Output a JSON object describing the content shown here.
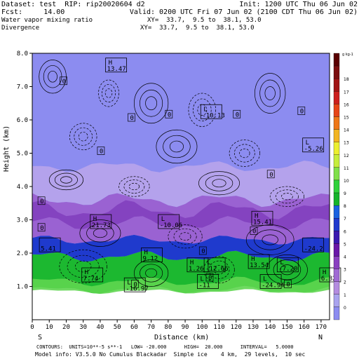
{
  "header": {
    "line1_left": "Dataset: test  RIP: rip20020604 d2",
    "line1_right": "Init: 1200 UTC Thu 06 Jun 02",
    "line2_left": "Fcst:     14.00",
    "line2_right": "Valid: 0200 UTC Fri 07 Jun 02 (2100 CDT Thu 06 Jun 02)",
    "line3_left": "Water vapor mixing ratio",
    "line3_right": "XY=  33.7,  9.5 to  38.1, 53.0",
    "line4_left": "Divergence",
    "line4_right": "XY=  33.7,  9.5 to  38.1, 53.0"
  },
  "footer": {
    "line1": "CONTOURS:  UNITS=10**-5 s**-1   LOW= -20.000      HIGH=  20.000      INTERVAL=   5.0000",
    "line2": "Model info: V3.5.0 No Cumulus Blackadar  Simple ice    4 km,  29 levels,  10 sec",
    "end_left": "S",
    "end_right": "N"
  },
  "chart_data": {
    "type": "heatmap",
    "xlabel": "Distance (km)",
    "ylabel": "Height (km)",
    "xlim": [
      0,
      175
    ],
    "ylim": [
      0,
      8
    ],
    "x_ticks": [
      "0",
      "10",
      "20",
      "30",
      "40",
      "50",
      "60",
      "70",
      "80",
      "90",
      "100",
      "110",
      "120",
      "130",
      "140",
      "150",
      "160",
      "170"
    ],
    "y_ticks": [
      "1.0",
      "2.0",
      "3.0",
      "4.0",
      "5.0",
      "6.0",
      "7.0",
      "8.0"
    ],
    "colorbar": {
      "unit_label": "g kg-1",
      "levels": [
        "0",
        "1",
        "2",
        "3",
        "4",
        "5",
        "6",
        "7",
        "8",
        "9",
        "10",
        "11",
        "12",
        "13",
        "14",
        "15",
        "16",
        "17",
        "18"
      ],
      "colors": [
        "#8c8cf0",
        "#a9a3ee",
        "#b48ce0",
        "#a06ad4",
        "#8a40c0",
        "#6a18a8",
        "#3a1ab0",
        "#1f3acd",
        "#1a62e0",
        "#15b42a",
        "#2fd13a",
        "#80e048",
        "#c6ed3c",
        "#ecef2f",
        "#f2b521",
        "#ee7717",
        "#e64516",
        "#cc1f1d",
        "#a01414",
        "#7a0d0d",
        "#5a0000"
      ]
    },
    "shaded_layers": [
      {
        "from_height": 0.0,
        "to_height": 0.9,
        "value_range": "terrain"
      },
      {
        "from_height": 0.9,
        "to_height": 1.9,
        "value_range": "8-10 g/kg"
      },
      {
        "from_height": 1.9,
        "to_height": 2.4,
        "value_range": "5-7 g/kg"
      },
      {
        "from_height": 2.4,
        "to_height": 3.6,
        "value_range": "2-4 g/kg"
      },
      {
        "from_height": 3.6,
        "to_height": 4.6,
        "value_range": "1-2 g/kg"
      },
      {
        "from_height": 4.6,
        "to_height": 8.0,
        "value_range": "0-1 g/kg"
      }
    ],
    "contour_labels": [
      {
        "x": 44,
        "y": 7.5,
        "text": "H",
        "value": "13.47"
      },
      {
        "x": 100,
        "y": 6.1,
        "text": "L",
        "value": "-10.13"
      },
      {
        "x": 160,
        "y": 5.1,
        "text": "L",
        "value": "-5.26"
      },
      {
        "x": 35,
        "y": 2.8,
        "text": "H",
        "value": "21.73"
      },
      {
        "x": 75,
        "y": 2.8,
        "text": "L",
        "value": "-10.06"
      },
      {
        "x": 130,
        "y": 2.9,
        "text": "H",
        "value": "15.41"
      },
      {
        "x": 160,
        "y": 2.1,
        "text": "",
        "value": "-24.2"
      },
      {
        "x": 5,
        "y": 2.1,
        "text": "",
        "value": "5.41"
      },
      {
        "x": 65,
        "y": 1.8,
        "text": "H",
        "value": "9.12"
      },
      {
        "x": 92,
        "y": 1.5,
        "text": "H",
        "value": "1.26"
      },
      {
        "x": 102,
        "y": 1.5,
        "text": "L",
        "value": "-12.66"
      },
      {
        "x": 128,
        "y": 1.6,
        "text": "H",
        "value": "13.54"
      },
      {
        "x": 145,
        "y": 1.5,
        "text": "L",
        "value": "-7.20"
      },
      {
        "x": 170,
        "y": 1.2,
        "text": "H",
        "value": "6.82"
      },
      {
        "x": 30,
        "y": 1.2,
        "text": "H",
        "value": "7.74"
      },
      {
        "x": 55,
        "y": 0.9,
        "text": "L",
        "value": "-16.97"
      },
      {
        "x": 98,
        "y": 1.0,
        "text": "L",
        "value": "-11"
      },
      {
        "x": 135,
        "y": 1.0,
        "text": "L",
        "value": "-24.94"
      }
    ],
    "zero_labels": [
      "0",
      "0",
      "0",
      "0",
      "0",
      "0",
      "0",
      "0",
      "0",
      "0",
      "0",
      "0",
      "0",
      "0"
    ]
  }
}
